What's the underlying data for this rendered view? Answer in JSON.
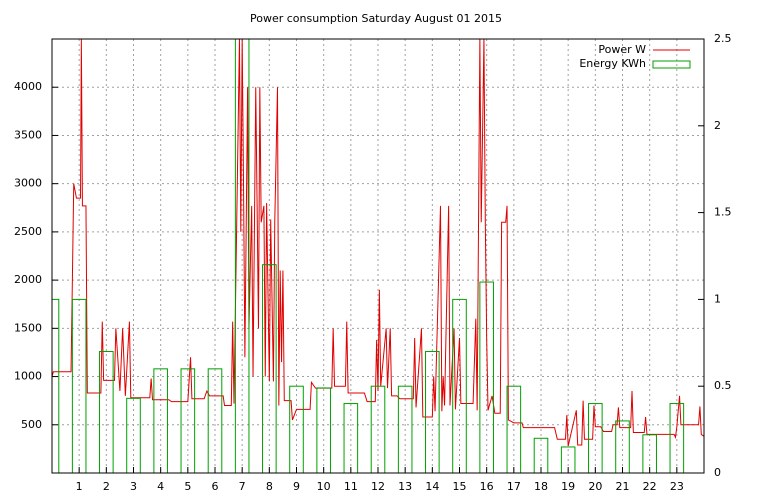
{
  "chart_data": {
    "type": "line",
    "title": "Power consumption Saturday August 01 2015",
    "xlim": [
      0,
      24
    ],
    "xticks": [
      1,
      2,
      3,
      4,
      5,
      6,
      7,
      8,
      9,
      10,
      11,
      12,
      13,
      14,
      15,
      16,
      17,
      18,
      19,
      20,
      21,
      22,
      23
    ],
    "ylim": [
      0,
      4500
    ],
    "yticks": [
      500,
      1000,
      1500,
      2000,
      2500,
      3000,
      3500,
      4000
    ],
    "y2lim": [
      0,
      2.5
    ],
    "y2ticks": [
      0,
      0.5,
      1,
      1.5,
      2,
      2.5
    ],
    "grid": true,
    "legend": "upper right",
    "series": [
      {
        "name": "Power W",
        "color": "#e00000",
        "x": [
          0,
          0.05,
          0.7,
          0.75,
          0.8,
          0.9,
          1.05,
          1.08,
          1.12,
          1.25,
          1.3,
          1.8,
          1.85,
          1.9,
          2.3,
          2.35,
          2.5,
          2.6,
          2.7,
          2.85,
          2.9,
          3.6,
          3.65,
          3.7,
          4.3,
          4.4,
          5.0,
          5.1,
          5.15,
          5.6,
          5.7,
          5.8,
          6.3,
          6.35,
          6.6,
          6.65,
          6.7,
          6.9,
          6.95,
          7.0,
          7.05,
          7.1,
          7.2,
          7.25,
          7.35,
          7.4,
          7.5,
          7.55,
          7.6,
          7.65,
          7.7,
          7.8,
          7.85,
          7.9,
          8.0,
          8.05,
          8.15,
          8.2,
          8.3,
          8.35,
          8.4,
          8.45,
          8.5,
          8.55,
          8.8,
          8.85,
          9.0,
          9.5,
          9.55,
          9.7,
          10.3,
          10.35,
          10.4,
          10.8,
          10.85,
          10.9,
          11.5,
          11.6,
          11.9,
          11.95,
          12.0,
          12.05,
          12.1,
          12.3,
          12.35,
          12.45,
          12.5,
          12.7,
          12.8,
          13.3,
          13.35,
          13.4,
          13.6,
          13.65,
          14.0,
          14.05,
          14.1,
          14.3,
          14.35,
          14.4,
          14.45,
          14.6,
          14.65,
          14.8,
          14.85,
          15.0,
          15.05,
          15.5,
          15.6,
          15.65,
          15.75,
          15.8,
          15.9,
          15.95,
          16.0,
          16.05,
          16.2,
          16.3,
          16.5,
          16.55,
          16.7,
          16.75,
          16.8,
          17.0,
          17.3,
          17.35,
          18.5,
          18.6,
          18.9,
          18.95,
          19.0,
          19.3,
          19.35,
          19.5,
          19.55,
          19.6,
          19.9,
          19.95,
          20.0,
          20.2,
          20.3,
          20.6,
          20.65,
          20.8,
          20.85,
          20.9,
          21.3,
          21.35,
          21.4,
          21.8,
          21.85,
          21.9,
          22.9,
          22.95,
          23.0,
          23.1,
          23.15,
          23.8,
          23.85,
          23.9,
          24
        ],
        "values": [
          1000,
          1050,
          1050,
          2000,
          3000,
          2850,
          2850,
          4500,
          2770,
          2770,
          830,
          830,
          1570,
          960,
          960,
          1500,
          850,
          1500,
          800,
          1570,
          780,
          780,
          980,
          760,
          760,
          740,
          740,
          1200,
          770,
          770,
          850,
          800,
          800,
          700,
          700,
          1570,
          720,
          4500,
          2500,
          4500,
          3000,
          1200,
          4000,
          1500,
          2770,
          1000,
          4000,
          2770,
          1500,
          4000,
          2600,
          2770,
          1000,
          2800,
          950,
          2630,
          950,
          2600,
          4000,
          700,
          2100,
          1150,
          2100,
          750,
          750,
          550,
          660,
          660,
          940,
          880,
          880,
          1500,
          900,
          900,
          1570,
          830,
          830,
          740,
          740,
          1380,
          850,
          1900,
          900,
          1500,
          880,
          1500,
          800,
          800,
          770,
          770,
          1400,
          680,
          1500,
          580,
          580,
          1000,
          640,
          2770,
          640,
          1000,
          700,
          2770,
          700,
          1500,
          660,
          1400,
          720,
          720,
          1600,
          650,
          4500,
          2600,
          4500,
          2600,
          1400,
          650,
          800,
          620,
          620,
          2600,
          2600,
          2770,
          550,
          520,
          520,
          470,
          470,
          350,
          350,
          600,
          280,
          650,
          290,
          290,
          750,
          350,
          350,
          700,
          480,
          480,
          430,
          430,
          500,
          500,
          680,
          470,
          470,
          850,
          420,
          420,
          580,
          400,
          400,
          370,
          480,
          800,
          500,
          500,
          690,
          400,
          380
        ]
      },
      {
        "name": "Energy KWh",
        "color": "#00a000",
        "type": "bar",
        "axis": "y2",
        "x": [
          0,
          1,
          2,
          3,
          4,
          5,
          6,
          7,
          8,
          9,
          10,
          11,
          12,
          13,
          14,
          15,
          16,
          17,
          18,
          19,
          20,
          21,
          22,
          23
        ],
        "values": [
          1.0,
          1.0,
          0.7,
          0.43,
          0.6,
          0.6,
          0.6,
          2.5,
          1.2,
          0.5,
          0.49,
          0.4,
          0.5,
          0.5,
          0.7,
          1.0,
          1.1,
          0.5,
          0.2,
          0.15,
          0.4,
          0.3,
          0.22,
          0.4
        ]
      }
    ]
  }
}
